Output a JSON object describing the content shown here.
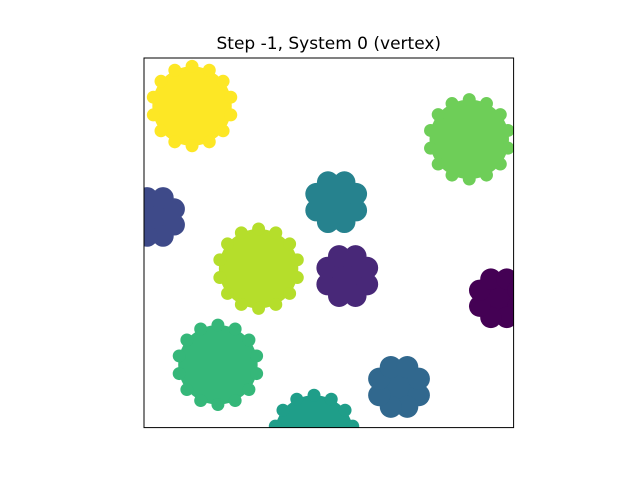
{
  "chart_data": {
    "type": "scatter",
    "title": "Step -1, System 0 (vertex)",
    "xlabel": "",
    "ylabel": "",
    "xlim": [
      0,
      1
    ],
    "ylim": [
      0,
      1
    ],
    "grid": false,
    "ticks": false,
    "markers": "lumpy-disc",
    "points": [
      {
        "name": "particle-yellow",
        "x": 0.13,
        "y": 0.87,
        "r": 0.125,
        "color": "#fde725"
      },
      {
        "name": "particle-light-green",
        "x": 0.88,
        "y": 0.78,
        "r": 0.125,
        "color": "#6ece58"
      },
      {
        "name": "particle-teal",
        "x": 0.52,
        "y": 0.61,
        "r": 0.088,
        "color": "#26828e"
      },
      {
        "name": "particle-indigo",
        "x": 0.03,
        "y": 0.57,
        "r": 0.085,
        "color": "#3e4a89"
      },
      {
        "name": "particle-lime",
        "x": 0.31,
        "y": 0.43,
        "r": 0.125,
        "color": "#b5de2b"
      },
      {
        "name": "particle-purple",
        "x": 0.55,
        "y": 0.41,
        "r": 0.088,
        "color": "#482878"
      },
      {
        "name": "particle-dark-purple",
        "x": 0.96,
        "y": 0.35,
        "r": 0.085,
        "color": "#440154"
      },
      {
        "name": "particle-green",
        "x": 0.2,
        "y": 0.17,
        "r": 0.125,
        "color": "#35b779"
      },
      {
        "name": "particle-blue",
        "x": 0.69,
        "y": 0.11,
        "r": 0.088,
        "color": "#31688e"
      },
      {
        "name": "particle-sea-green",
        "x": 0.46,
        "y": -0.02,
        "r": 0.125,
        "color": "#1f9e89"
      }
    ]
  }
}
